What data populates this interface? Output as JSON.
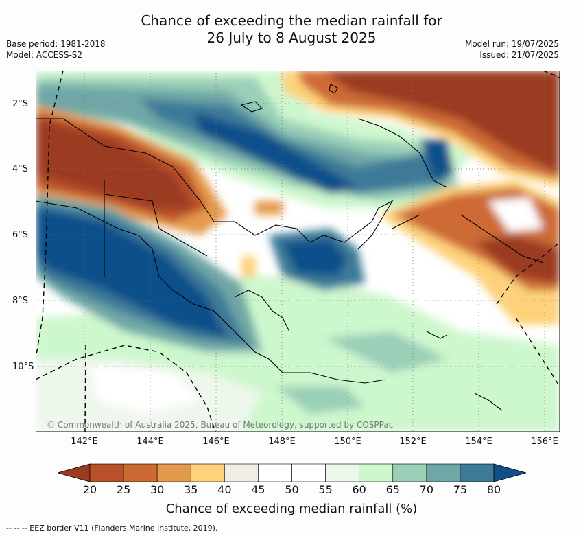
{
  "title": {
    "line1": "Chance of exceeding the median rainfall for",
    "line2": "26 July to 8 August 2025"
  },
  "meta": {
    "base_period": "Base period: 1981-2018",
    "model": "Model: ACCESS-S2",
    "model_run": "Model run: 19/07/2025",
    "issued": "Issued: 21/07/2025"
  },
  "credit": "© Commonwealth of Australia 2025, Bureau of Meteorology, supported by COSPPac",
  "lat_labels": [
    "2°S",
    "4°S",
    "6°S",
    "8°S",
    "10°S"
  ],
  "lon_labels": [
    "142°E",
    "144°E",
    "146°E",
    "148°E",
    "150°E",
    "152°E",
    "154°E",
    "156°E"
  ],
  "colorbar": {
    "ticks": [
      "20",
      "25",
      "30",
      "35",
      "40",
      "45",
      "50",
      "55",
      "60",
      "65",
      "70",
      "75",
      "80"
    ],
    "colors": [
      "#9b3a20",
      "#b8502a",
      "#cd6a34",
      "#e49a4c",
      "#fdd27a",
      "#f0ede6",
      "#ffffff",
      "#ffffff",
      "#eef7ec",
      "#cdf7cd",
      "#9acfb8",
      "#6fa7a6",
      "#3d7a98",
      "#114f8a"
    ],
    "label": "Chance of exceeding median rainfall (%)"
  },
  "eez_legend": "-- -- -- EEZ border V11 (Flanders Marine Institute, 2019)."
}
